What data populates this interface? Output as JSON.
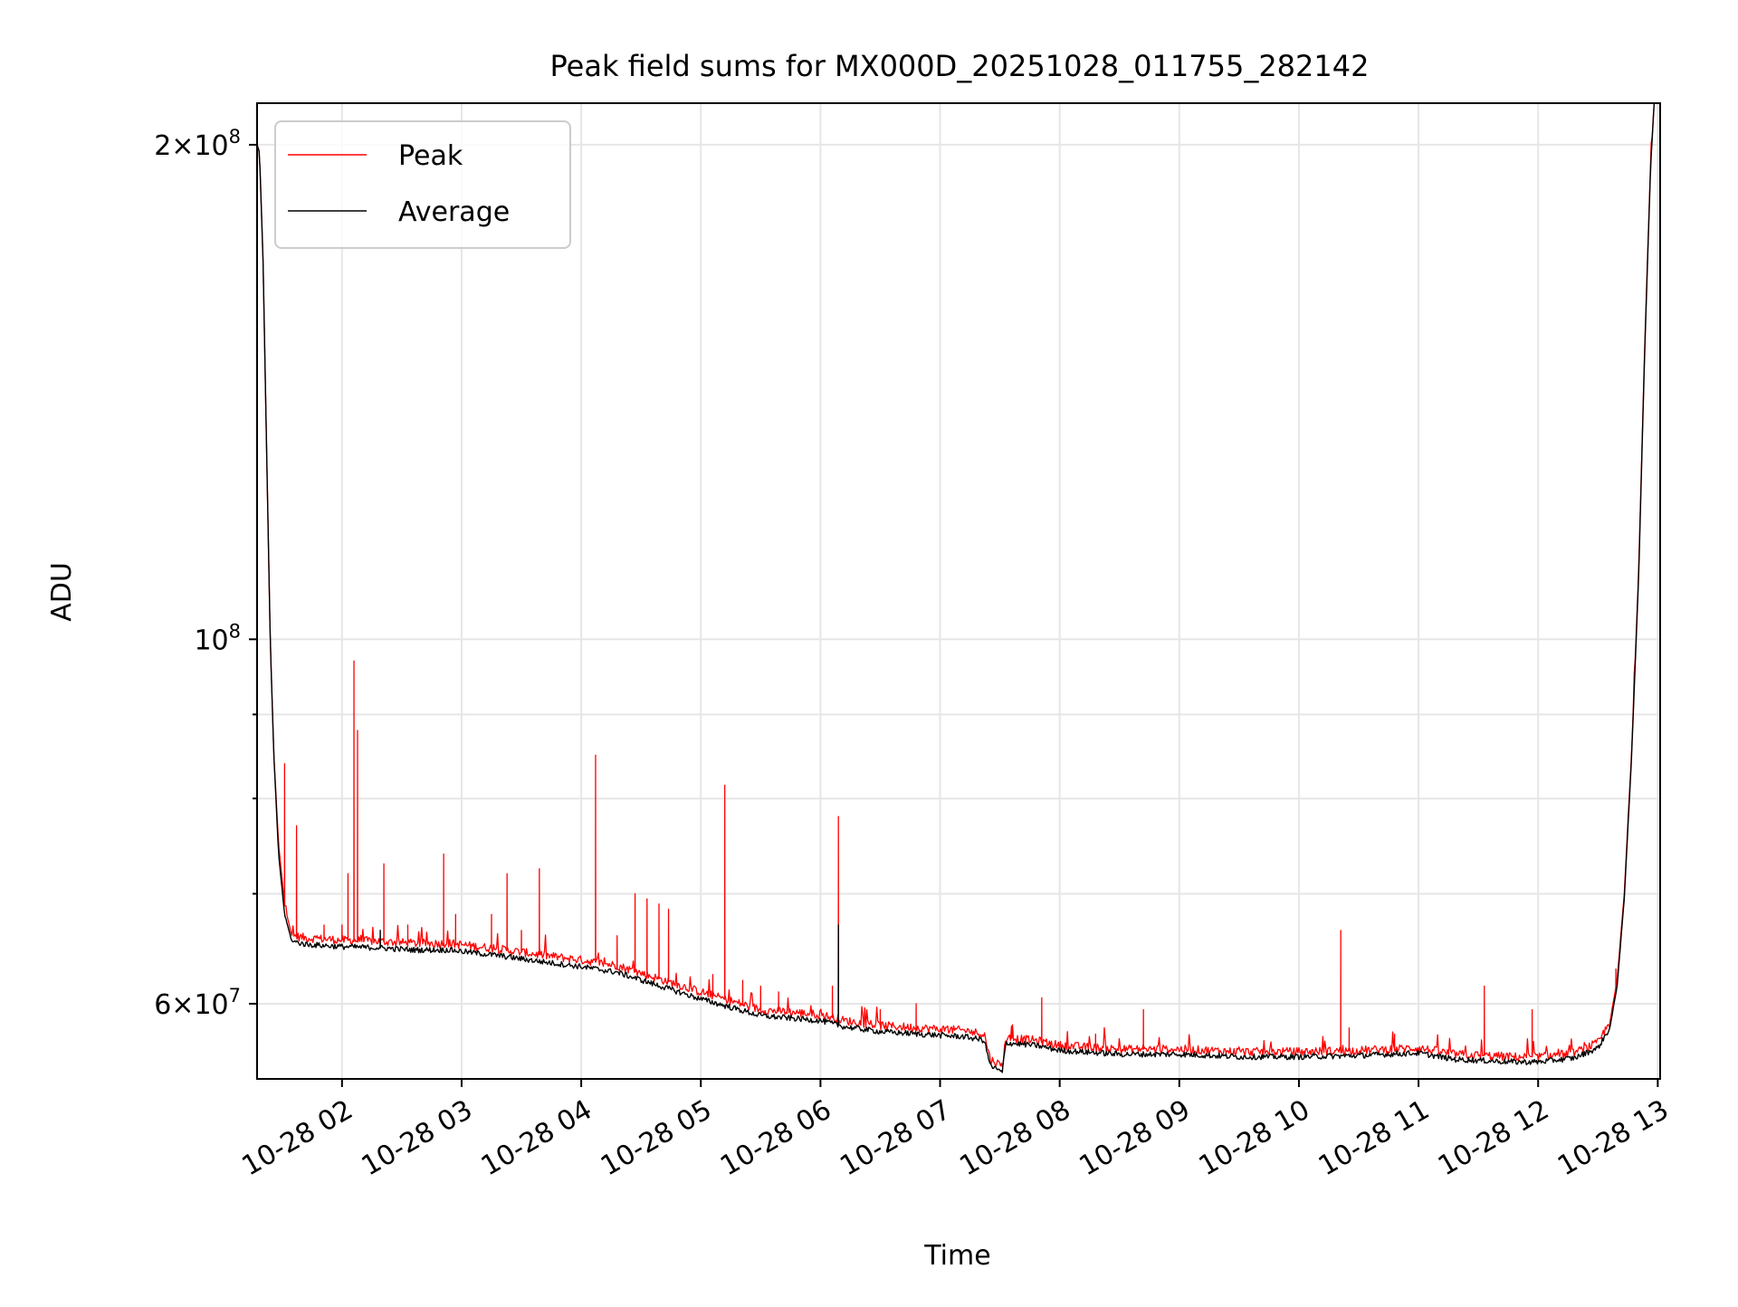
{
  "chart_data": {
    "type": "line",
    "title": "Peak field sums for MX000D_20251028_011755_282142",
    "xlabel": "Time",
    "ylabel": "ADU",
    "yscale": "log",
    "xlim_hours": [
      1.29,
      13.02
    ],
    "ylim": [
      54000000,
      212000000
    ],
    "grid": true,
    "legend_position": "top-left",
    "x_ticks": [
      {
        "hour": 2,
        "label": "10-28 02"
      },
      {
        "hour": 3,
        "label": "10-28 03"
      },
      {
        "hour": 4,
        "label": "10-28 04"
      },
      {
        "hour": 5,
        "label": "10-28 05"
      },
      {
        "hour": 6,
        "label": "10-28 06"
      },
      {
        "hour": 7,
        "label": "10-28 07"
      },
      {
        "hour": 8,
        "label": "10-28 08"
      },
      {
        "hour": 9,
        "label": "10-28 09"
      },
      {
        "hour": 10,
        "label": "10-28 10"
      },
      {
        "hour": 11,
        "label": "10-28 11"
      },
      {
        "hour": 12,
        "label": "10-28 12"
      },
      {
        "hour": 13,
        "label": "10-28 13"
      }
    ],
    "y_ticks": [
      {
        "value": 60000000,
        "base": "6×10",
        "exp": "7"
      },
      {
        "value": 100000000,
        "base": "10",
        "exp": "8"
      },
      {
        "value": 200000000,
        "base": "2×10",
        "exp": "8"
      }
    ],
    "y_minor_ticks": [
      70000000,
      80000000,
      90000000
    ],
    "series": [
      {
        "name": "Peak",
        "color": "#ff0000",
        "baseline": [
          [
            1.29,
            200000000
          ],
          [
            1.31,
            198000000
          ],
          [
            1.34,
            170000000
          ],
          [
            1.37,
            130000000
          ],
          [
            1.4,
            100000000
          ],
          [
            1.43,
            85000000
          ],
          [
            1.47,
            75000000
          ],
          [
            1.52,
            69000000
          ],
          [
            1.58,
            66000000
          ],
          [
            1.7,
            65800000
          ],
          [
            2.0,
            65600000
          ],
          [
            2.3,
            65500000
          ],
          [
            2.6,
            65300000
          ],
          [
            2.9,
            65300000
          ],
          [
            3.3,
            64800000
          ],
          [
            3.7,
            64200000
          ],
          [
            4.0,
            63800000
          ],
          [
            4.3,
            63300000
          ],
          [
            4.6,
            62300000
          ],
          [
            5.0,
            61000000
          ],
          [
            5.5,
            59500000
          ],
          [
            6.0,
            59100000
          ],
          [
            6.2,
            58600000
          ],
          [
            6.5,
            58200000
          ],
          [
            7.0,
            57900000
          ],
          [
            7.2,
            57800000
          ],
          [
            7.37,
            57500000
          ],
          [
            7.42,
            55500000
          ],
          [
            7.52,
            55000000
          ],
          [
            7.55,
            57200000
          ],
          [
            7.8,
            57000000
          ],
          [
            8.0,
            56600000
          ],
          [
            8.5,
            56300000
          ],
          [
            9.0,
            56300000
          ],
          [
            9.5,
            56100000
          ],
          [
            10.0,
            56100000
          ],
          [
            10.5,
            56200000
          ],
          [
            11.0,
            56400000
          ],
          [
            11.3,
            55900000
          ],
          [
            11.8,
            55700000
          ],
          [
            12.0,
            55700000
          ],
          [
            12.3,
            56000000
          ],
          [
            12.5,
            56800000
          ],
          [
            12.6,
            58500000
          ],
          [
            12.66,
            62000000
          ],
          [
            12.72,
            70000000
          ],
          [
            12.78,
            85000000
          ],
          [
            12.84,
            110000000
          ],
          [
            12.89,
            150000000
          ],
          [
            12.94,
            195000000
          ],
          [
            12.97,
            212000000
          ]
        ],
        "spikes": [
          [
            1.52,
            84000000
          ],
          [
            1.62,
            77000000
          ],
          [
            1.85,
            67000000
          ],
          [
            2.0,
            67000000
          ],
          [
            2.1,
            97000000
          ],
          [
            2.13,
            88000000
          ],
          [
            2.05,
            72000000
          ],
          [
            2.35,
            73000000
          ],
          [
            2.55,
            67000000
          ],
          [
            2.85,
            74000000
          ],
          [
            2.95,
            68000000
          ],
          [
            3.25,
            68000000
          ],
          [
            3.38,
            72000000
          ],
          [
            3.65,
            72500000
          ],
          [
            3.5,
            66500000
          ],
          [
            4.12,
            85000000
          ],
          [
            4.45,
            70000000
          ],
          [
            4.55,
            69500000
          ],
          [
            4.65,
            69000000
          ],
          [
            4.73,
            68500000
          ],
          [
            4.3,
            66000000
          ],
          [
            5.2,
            81500000
          ],
          [
            5.1,
            62500000
          ],
          [
            5.35,
            62000000
          ],
          [
            5.5,
            61500000
          ],
          [
            5.65,
            61000000
          ],
          [
            6.1,
            61500000
          ],
          [
            6.15,
            78000000
          ],
          [
            6.5,
            59500000
          ],
          [
            6.8,
            60000000
          ],
          [
            7.6,
            58000000
          ],
          [
            7.85,
            60500000
          ],
          [
            8.3,
            57500000
          ],
          [
            8.7,
            59500000
          ],
          [
            10.35,
            66500000
          ],
          [
            10.42,
            58000000
          ],
          [
            10.8,
            57500000
          ],
          [
            11.55,
            61500000
          ],
          [
            11.95,
            59500000
          ],
          [
            12.65,
            63000000
          ]
        ]
      },
      {
        "name": "Average",
        "color": "#000000",
        "baseline": [
          [
            1.29,
            200000000
          ],
          [
            1.31,
            198000000
          ],
          [
            1.34,
            170000000
          ],
          [
            1.37,
            130000000
          ],
          [
            1.4,
            100000000
          ],
          [
            1.43,
            85000000
          ],
          [
            1.47,
            74000000
          ],
          [
            1.52,
            68000000
          ],
          [
            1.58,
            65500000
          ],
          [
            1.7,
            65200000
          ],
          [
            2.0,
            65000000
          ],
          [
            2.3,
            64900000
          ],
          [
            2.6,
            64700000
          ],
          [
            2.9,
            64700000
          ],
          [
            3.3,
            64200000
          ],
          [
            3.7,
            63600000
          ],
          [
            4.0,
            63200000
          ],
          [
            4.3,
            62700000
          ],
          [
            4.6,
            61700000
          ],
          [
            5.0,
            60400000
          ],
          [
            5.5,
            59000000
          ],
          [
            6.0,
            58600000
          ],
          [
            6.2,
            58100000
          ],
          [
            6.5,
            57700000
          ],
          [
            7.0,
            57400000
          ],
          [
            7.2,
            57300000
          ],
          [
            7.37,
            57000000
          ],
          [
            7.42,
            55000000
          ],
          [
            7.52,
            54500000
          ],
          [
            7.55,
            56800000
          ],
          [
            7.8,
            56600000
          ],
          [
            8.0,
            56200000
          ],
          [
            8.5,
            55900000
          ],
          [
            9.0,
            55900000
          ],
          [
            9.5,
            55700000
          ],
          [
            10.0,
            55700000
          ],
          [
            10.5,
            55800000
          ],
          [
            11.0,
            56000000
          ],
          [
            11.3,
            55500000
          ],
          [
            11.8,
            55300000
          ],
          [
            12.0,
            55300000
          ],
          [
            12.3,
            55600000
          ],
          [
            12.5,
            56400000
          ],
          [
            12.6,
            58000000
          ],
          [
            12.66,
            61500000
          ],
          [
            12.72,
            69500000
          ],
          [
            12.78,
            84500000
          ],
          [
            12.84,
            109000000
          ],
          [
            12.89,
            149000000
          ],
          [
            12.94,
            194000000
          ],
          [
            12.97,
            212000000
          ]
        ],
        "spikes": [
          [
            2.32,
            66500000
          ],
          [
            6.15,
            67000000
          ],
          [
            7.52,
            54500000
          ]
        ]
      }
    ]
  }
}
